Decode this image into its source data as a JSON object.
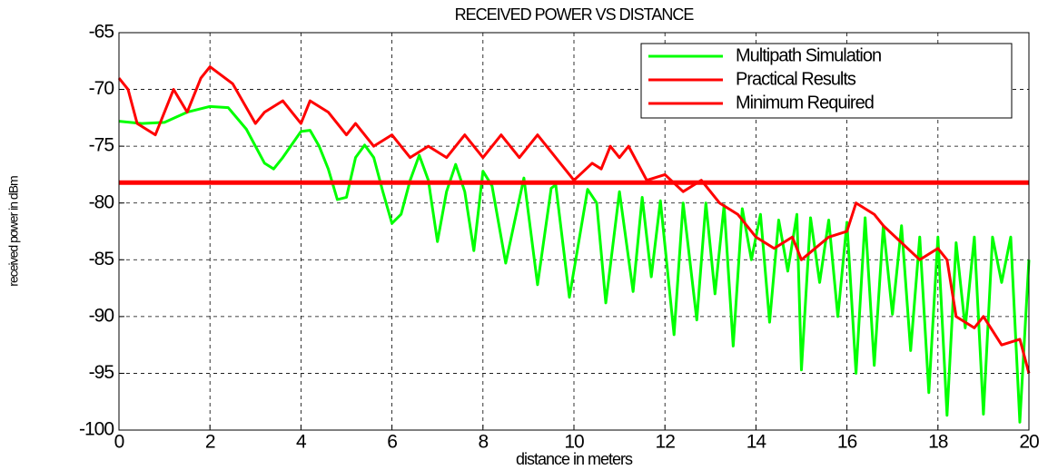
{
  "chart_data": {
    "type": "line",
    "title": "RECEIVED POWER VS DISTANCE",
    "xlabel": "distance in meters",
    "ylabel": "received power in dBm",
    "xlim": [
      0,
      20
    ],
    "xticks": [
      0,
      2,
      4,
      6,
      8,
      10,
      12,
      14,
      16,
      18,
      20
    ],
    "ylim": [
      -100,
      -65
    ],
    "yticks": [
      -100,
      -95,
      -90,
      -85,
      -80,
      -75,
      -70,
      -65
    ],
    "grid": true,
    "legend": "upper right",
    "series": [
      {
        "name": "Multipath Simulation",
        "color": "#00ff00",
        "x": [
          0,
          0.5,
          1,
          1.5,
          2,
          2.4,
          2.8,
          3.2,
          3.4,
          3.6,
          4.0,
          4.2,
          4.4,
          4.6,
          4.8,
          5.0,
          5.2,
          5.4,
          5.6,
          5.8,
          6.0,
          6.2,
          6.4,
          6.6,
          6.8,
          7.0,
          7.2,
          7.4,
          7.6,
          7.8,
          8.0,
          8.2,
          8.5,
          8.9,
          9.2,
          9.5,
          9.6,
          9.9,
          10.3,
          10.5,
          10.7,
          11.0,
          11.3,
          11.5,
          11.7,
          11.9,
          12.2,
          12.4,
          12.7,
          12.9,
          13.1,
          13.3,
          13.5,
          13.7,
          13.9,
          14.1,
          14.3,
          14.5,
          14.7,
          14.9,
          15.0,
          15.2,
          15.4,
          15.6,
          15.8,
          16.0,
          16.2,
          16.4,
          16.6,
          16.8,
          17.0,
          17.2,
          17.4,
          17.6,
          17.8,
          18.0,
          18.2,
          18.4,
          18.6,
          18.8,
          19.0,
          19.2,
          19.4,
          19.6,
          19.8,
          20.0
        ],
        "values": [
          -72.8,
          -73,
          -72.9,
          -72,
          -71.5,
          -71.6,
          -73.5,
          -76.5,
          -77,
          -76,
          -73.7,
          -73.6,
          -75,
          -77,
          -79.7,
          -79.5,
          -76,
          -74.9,
          -76,
          -79,
          -81.8,
          -81,
          -78,
          -75.8,
          -78,
          -83.4,
          -79,
          -76.6,
          -79,
          -84.2,
          -77.2,
          -78.5,
          -85.3,
          -77.8,
          -87.2,
          -78.7,
          -78.4,
          -88.3,
          -78.8,
          -80,
          -88.8,
          -79,
          -87.8,
          -79.5,
          -86.5,
          -79.8,
          -91.6,
          -80,
          -90.3,
          -80,
          -88,
          -80.2,
          -92.6,
          -80.5,
          -85,
          -81,
          -90.5,
          -81.5,
          -86,
          -81,
          -94.7,
          -81.3,
          -87,
          -81.5,
          -90,
          -81.7,
          -95,
          -81.3,
          -94.3,
          -82,
          -89.8,
          -82,
          -93,
          -83,
          -96.7,
          -83,
          -98.7,
          -83.5,
          -91,
          -83,
          -98.6,
          -83,
          -87,
          -83,
          -99.3,
          -85
        ]
      },
      {
        "name": "Practical Results",
        "color": "#ff0000",
        "x": [
          0,
          0.2,
          0.4,
          0.8,
          1.2,
          1.5,
          1.8,
          2.0,
          2.5,
          3.0,
          3.2,
          3.6,
          4.0,
          4.2,
          4.6,
          5.0,
          5.2,
          5.6,
          6.0,
          6.4,
          6.8,
          7.2,
          7.6,
          8.0,
          8.4,
          8.8,
          9.2,
          9.6,
          10.0,
          10.4,
          10.6,
          10.8,
          11.0,
          11.2,
          11.6,
          12.0,
          12.4,
          12.8,
          13.2,
          13.6,
          14.0,
          14.4,
          14.8,
          15.0,
          15.6,
          16.0,
          16.2,
          16.6,
          16.8,
          17.2,
          17.6,
          18.0,
          18.2,
          18.4,
          18.8,
          19.0,
          19.4,
          19.8,
          20.0
        ],
        "values": [
          -69,
          -70,
          -73,
          -74,
          -70,
          -72,
          -69,
          -68,
          -69.5,
          -73,
          -72,
          -71,
          -73,
          -71,
          -72,
          -74,
          -73,
          -75,
          -74,
          -76,
          -75,
          -76,
          -74,
          -76,
          -74,
          -76,
          -74,
          -76,
          -78,
          -76.5,
          -77,
          -75,
          -76,
          -75,
          -78,
          -77.5,
          -79,
          -78,
          -80,
          -81,
          -83,
          -84,
          -83,
          -85,
          -83,
          -82.5,
          -80,
          -81,
          -82,
          -83.5,
          -85,
          -84,
          -85,
          -90,
          -91,
          -90,
          -92.5,
          -92,
          -95
        ]
      },
      {
        "name": "Minimum Required",
        "color": "#ff0000",
        "width": 5,
        "x": [
          0,
          20
        ],
        "values": [
          -78.2,
          -78.2
        ]
      }
    ]
  }
}
